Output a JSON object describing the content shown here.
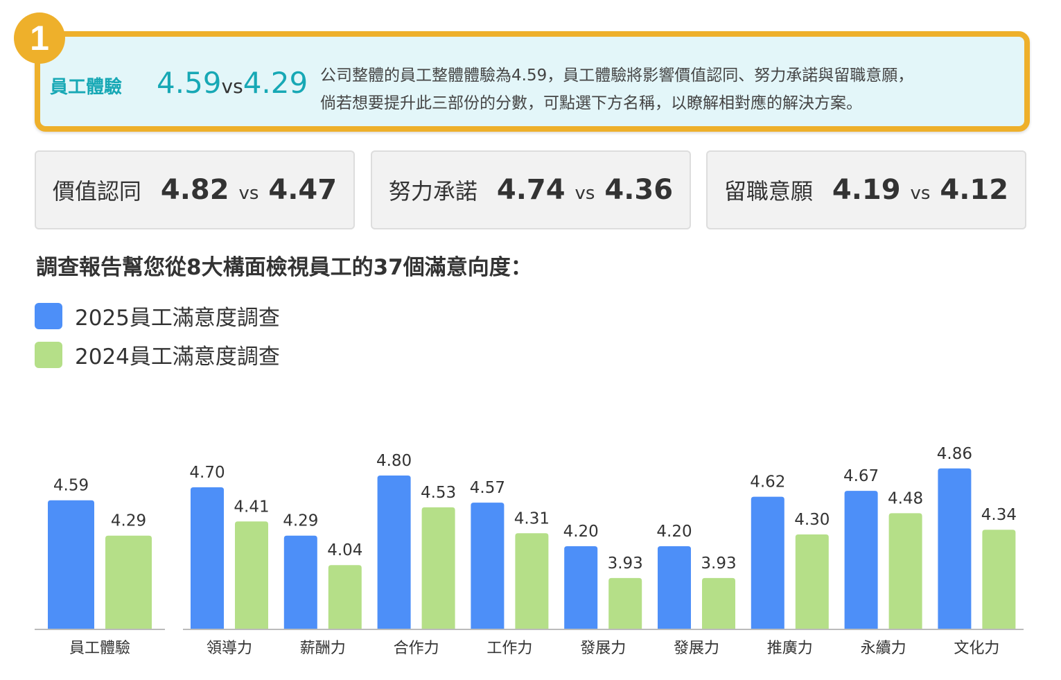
{
  "highlight": {
    "badge": "1",
    "label": "員工體驗",
    "value_2025": "4.59",
    "vs": "vs",
    "value_2024": "4.29",
    "description_line1": "公司整體的員工整體體驗為4.59，員工體驗將影響價值認同、努力承諾與留職意願，",
    "description_line2": "倘若想要提升此三部份的分數，可點選下方名稱，以瞭解相對應的解決方案。",
    "accent_color": "#eeb02b",
    "text_color": "#17a8b5"
  },
  "cards": [
    {
      "label": "價值認同",
      "value_2025": "4.82",
      "vs": "vs",
      "value_2024": "4.47"
    },
    {
      "label": "努力承諾",
      "value_2025": "4.74",
      "vs": "vs",
      "value_2024": "4.36"
    },
    {
      "label": "留職意願",
      "value_2025": "4.19",
      "vs": "vs",
      "value_2024": "4.12"
    }
  ],
  "heading": "調查報告幫您從8大構面檢視員工的37個滿意向度：",
  "chart_data": {
    "type": "bar",
    "categories": [
      "員工體驗",
      "領導力",
      "薪酬力",
      "合作力",
      "工作力",
      "發展力",
      "發展力",
      "推廣力",
      "永續力",
      "文化力"
    ],
    "series": [
      {
        "name": "2025員工滿意度調查",
        "color": "#4d8ff8",
        "values": [
          4.59,
          4.7,
          4.29,
          4.8,
          4.57,
          4.2,
          4.2,
          4.62,
          4.67,
          4.86
        ]
      },
      {
        "name": "2024員工滿意度調查",
        "color": "#b5df88",
        "values": [
          4.29,
          4.41,
          4.04,
          4.53,
          4.31,
          3.93,
          3.93,
          4.3,
          4.48,
          4.34
        ]
      }
    ],
    "ylim": [
      3.5,
      5.0
    ],
    "grid": false,
    "legend_position": "top-left",
    "data_labels": true
  }
}
